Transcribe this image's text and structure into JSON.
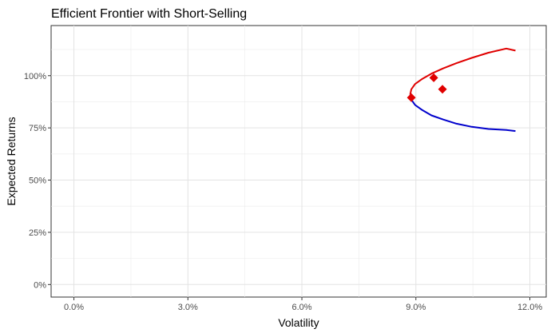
{
  "chart_data": {
    "type": "line",
    "title": "Efficient Frontier with Short-Selling",
    "xlabel": "Volatility",
    "ylabel": "Expected Returns",
    "xlim": [
      -0.006,
      0.1243
    ],
    "ylim": [
      -0.06,
      1.24
    ],
    "x_ticks": [
      0.0,
      0.03,
      0.06,
      0.09,
      0.12
    ],
    "x_tick_labels": [
      "0.0%",
      "3.0%",
      "6.0%",
      "9.0%",
      "12.0%"
    ],
    "y_ticks": [
      0.0,
      0.25,
      0.5,
      0.75,
      1.0
    ],
    "y_tick_labels": [
      "0%",
      "25%",
      "50%",
      "75%",
      "100%"
    ],
    "grid": true,
    "series": [
      {
        "color": "#e00000",
        "x": [
          0.0885,
          0.0888,
          0.0898,
          0.0917,
          0.0941,
          0.0972,
          0.1007,
          0.1047,
          0.1091,
          0.1138,
          0.1162
        ],
        "y": [
          0.91,
          0.935,
          0.96,
          0.985,
          1.01,
          1.035,
          1.06,
          1.085,
          1.11,
          1.13,
          1.12
        ]
      },
      {
        "color": "#0000cc",
        "x": [
          0.0885,
          0.0888,
          0.0898,
          0.0917,
          0.0941,
          0.0972,
          0.1007,
          0.1047,
          0.1091,
          0.1138,
          0.1162
        ],
        "y": [
          0.91,
          0.885,
          0.86,
          0.835,
          0.81,
          0.79,
          0.77,
          0.755,
          0.745,
          0.74,
          0.735
        ]
      }
    ],
    "points": {
      "color": "#e00000",
      "shape": "diamond",
      "x": [
        0.0888,
        0.0947,
        0.097
      ],
      "y": [
        0.895,
        0.99,
        0.935
      ]
    }
  }
}
